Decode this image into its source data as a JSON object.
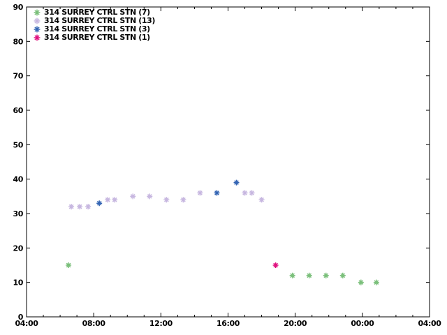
{
  "figure": {
    "background_color": "#ffffff",
    "axis_color": "#000000",
    "text_color": "#000000"
  },
  "chart_data": {
    "type": "scatter",
    "title": "",
    "xlabel": "",
    "ylabel": "",
    "marker": "asterisk",
    "grid": "off",
    "legend_position": "top-left-inside",
    "x_axis": {
      "kind": "time-of-day",
      "start_hour": 4,
      "end_hour": 28,
      "major_tick_interval_hours": 4,
      "minor_tick_interval_hours": 1,
      "tick_labels": [
        "04:00",
        "08:00",
        "12:00",
        "16:00",
        "20:00",
        "00:00",
        "04:00"
      ]
    },
    "y_axis": {
      "min": 0,
      "max": 90,
      "major_tick_interval": 10,
      "tick_labels": [
        "0",
        "10",
        "20",
        "30",
        "40",
        "50",
        "60",
        "70",
        "80",
        "90"
      ]
    },
    "series": [
      {
        "label": "314 SURREY CTRL STN (7)",
        "color": "#7abf7a",
        "points": [
          {
            "time": "06:30",
            "value": 15
          },
          {
            "time": "19:50",
            "value": 12
          },
          {
            "time": "20:50",
            "value": 12
          },
          {
            "time": "21:50",
            "value": 12
          },
          {
            "time": "22:50",
            "value": 12
          },
          {
            "time": "23:55",
            "value": 10
          },
          {
            "time": "00:50",
            "value": 10
          }
        ]
      },
      {
        "label": "314 SURREY CTRL STN (13)",
        "color": "#c7b7e0",
        "points": [
          {
            "time": "06:40",
            "value": 32
          },
          {
            "time": "07:10",
            "value": 32
          },
          {
            "time": "07:40",
            "value": 32
          },
          {
            "time": "08:50",
            "value": 34
          },
          {
            "time": "09:15",
            "value": 34
          },
          {
            "time": "10:20",
            "value": 35
          },
          {
            "time": "11:20",
            "value": 35
          },
          {
            "time": "12:20",
            "value": 34
          },
          {
            "time": "13:20",
            "value": 34
          },
          {
            "time": "14:20",
            "value": 36
          },
          {
            "time": "17:00",
            "value": 36
          },
          {
            "time": "17:25",
            "value": 36
          },
          {
            "time": "18:00",
            "value": 34
          }
        ]
      },
      {
        "label": "314 SURREY CTRL STN (3)",
        "color": "#3465b4",
        "points": [
          {
            "time": "08:20",
            "value": 33
          },
          {
            "time": "15:20",
            "value": 36
          },
          {
            "time": "16:30",
            "value": 39
          }
        ]
      },
      {
        "label": "314 SURREY CTRL STN (1)",
        "color": "#e0117f",
        "points": [
          {
            "time": "18:50",
            "value": 15
          }
        ]
      }
    ]
  }
}
